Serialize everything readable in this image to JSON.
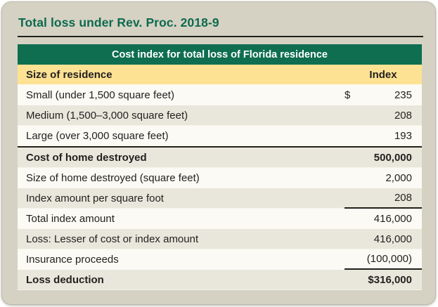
{
  "page": {
    "title": "Total loss under Rev. Proc. 2018-9"
  },
  "table": {
    "title": "Cost index for total loss of Florida residence",
    "col_header": {
      "label": "Size of residence",
      "value": "Index"
    },
    "rows": [
      {
        "label": "Small (under 1,500 square feet)",
        "prefix": "$",
        "value": "235",
        "bold": false,
        "shade": "light",
        "section_start": false,
        "underline": false
      },
      {
        "label": "Medium (1,500–3,000 square feet)",
        "prefix": "",
        "value": "208",
        "bold": false,
        "shade": "dark",
        "section_start": false,
        "underline": false
      },
      {
        "label": "Large (over 3,000 square feet)",
        "prefix": "",
        "value": "193",
        "bold": false,
        "shade": "light",
        "section_start": false,
        "underline": false
      },
      {
        "label": "Cost of home destroyed",
        "prefix": "",
        "value": "500,000",
        "bold": true,
        "shade": "dark",
        "section_start": true,
        "underline": false
      },
      {
        "label": "Size of home destroyed (square feet)",
        "prefix": "",
        "value": "2,000",
        "bold": false,
        "shade": "light",
        "section_start": false,
        "underline": false
      },
      {
        "label": "Index amount per square foot",
        "prefix": "",
        "value": "208",
        "bold": false,
        "shade": "dark",
        "section_start": false,
        "underline": true
      },
      {
        "label": "Total index amount",
        "prefix": "",
        "value": "416,000",
        "bold": false,
        "shade": "light",
        "section_start": false,
        "underline": false
      },
      {
        "label": "Loss: Lesser of cost or index amount",
        "prefix": "",
        "value": "416,000",
        "bold": false,
        "shade": "dark",
        "section_start": false,
        "underline": false
      },
      {
        "label": "Insurance proceeds",
        "prefix": "",
        "value": "(100,000)",
        "bold": false,
        "shade": "light",
        "section_start": false,
        "underline": true
      },
      {
        "label": "Loss deduction",
        "prefix": "",
        "value": "$316,000",
        "bold": true,
        "shade": "dark",
        "section_start": false,
        "underline": false
      }
    ]
  },
  "colors": {
    "card_bg": "#d5d2c4",
    "header_green": "#0e6e4f",
    "title_green": "#0d6a4e",
    "col_header_yellow": "#fde293",
    "row_light": "#fbfaf4",
    "row_dark": "#e9e7db",
    "text": "#231f20",
    "rule_dark": "#21211a",
    "header_text": "#ffffff"
  }
}
